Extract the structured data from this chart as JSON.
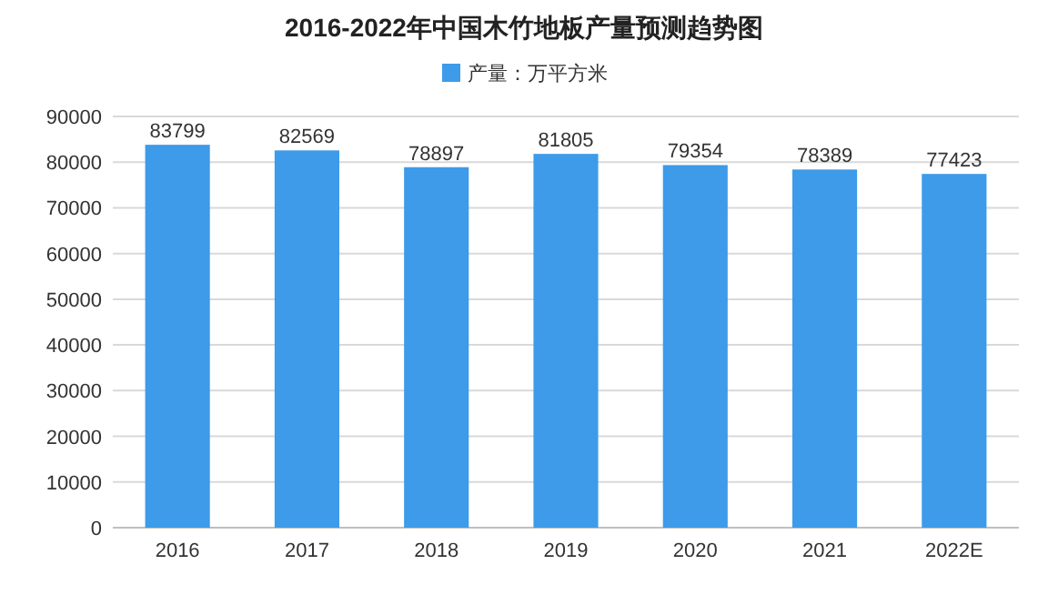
{
  "chart_data": {
    "type": "bar",
    "title": "2016-2022年中国木竹地板产量预测趋势图",
    "categories": [
      "2016",
      "2017",
      "2018",
      "2019",
      "2020",
      "2021",
      "2022E"
    ],
    "series": [
      {
        "name": "产量：万平方米",
        "color": "#3d9be9",
        "values": [
          83799,
          82569,
          78897,
          81805,
          79354,
          78389,
          77423
        ]
      }
    ],
    "ylim": [
      0,
      90000
    ],
    "yticks": [
      0,
      10000,
      20000,
      30000,
      40000,
      50000,
      60000,
      70000,
      80000,
      90000
    ],
    "grid": "y",
    "legend": "top",
    "data_labels": true
  }
}
